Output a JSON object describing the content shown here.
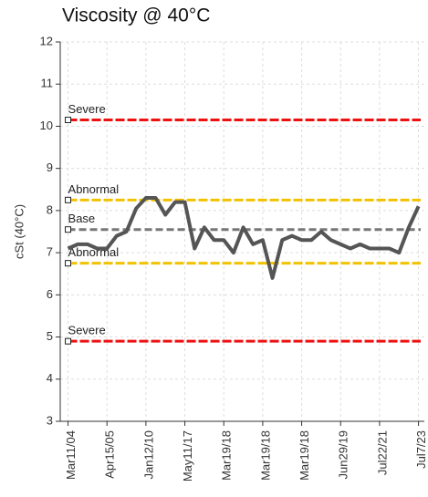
{
  "chart_data": {
    "type": "line",
    "title": "Viscosity @ 40°C",
    "y_label": "cSt (40°C)",
    "x": [
      0,
      1,
      2,
      3,
      4,
      5,
      6,
      7,
      8,
      9,
      10,
      11,
      12,
      13,
      14,
      15,
      16,
      17,
      18,
      19,
      20,
      21,
      22,
      23,
      24,
      25,
      26,
      27,
      28,
      29,
      30,
      31,
      32,
      33,
      34,
      35,
      36
    ],
    "series": [
      {
        "name": "Viscosity",
        "color": "#555555",
        "values": [
          7.1,
          7.2,
          7.2,
          7.1,
          7.1,
          7.4,
          7.5,
          8.05,
          8.3,
          8.3,
          7.9,
          8.2,
          8.2,
          7.1,
          7.6,
          7.3,
          7.3,
          7.0,
          7.6,
          7.2,
          7.3,
          6.4,
          7.3,
          7.4,
          7.3,
          7.3,
          7.5,
          7.3,
          7.2,
          7.1,
          7.2,
          7.1,
          7.1,
          7.1,
          7.0,
          7.6,
          8.1
        ]
      }
    ],
    "xlim": [
      -0.8,
      36.6
    ],
    "xticks": [
      {
        "value": 0,
        "label": "Mar11/04"
      },
      {
        "value": 4,
        "label": "Apr15/05"
      },
      {
        "value": 8,
        "label": "Jan12/10"
      },
      {
        "value": 12,
        "label": "May11/17"
      },
      {
        "value": 16,
        "label": "Mar19/18"
      },
      {
        "value": 20,
        "label": "Mar19/18"
      },
      {
        "value": 24,
        "label": "Mar19/18"
      },
      {
        "value": 28,
        "label": "Jun29/19"
      },
      {
        "value": 32,
        "label": "Jul22/21"
      },
      {
        "value": 36,
        "label": "Jul7/23"
      }
    ],
    "ylim": [
      3,
      12
    ],
    "yticks": [
      3,
      4,
      5,
      6,
      7,
      8,
      9,
      10,
      11,
      12
    ],
    "grid": true,
    "reference_lines": [
      {
        "label": "Severe",
        "value": 10.15,
        "color": "#ee1111"
      },
      {
        "label": "Abnormal",
        "value": 8.25,
        "color": "#f2c200"
      },
      {
        "label": "Base",
        "value": 7.55,
        "color": "#777777"
      },
      {
        "label": "Abnormal",
        "value": 6.75,
        "color": "#f2c200"
      },
      {
        "label": "Severe",
        "value": 4.9,
        "color": "#ee1111"
      }
    ]
  }
}
